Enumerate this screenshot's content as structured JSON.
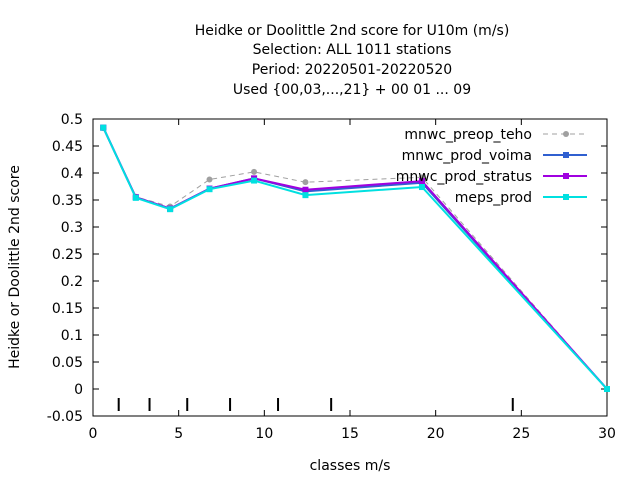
{
  "chart_data": {
    "type": "line",
    "title_lines": [
      "Heidke or Doolittle 2nd score  for U10m (m/s)",
      "Selection: ALL    1011 stations",
      "Period: 20220501-20220520",
      "Used {00,03,...,21} + 00 01 ... 09"
    ],
    "xlabel": "classes m/s",
    "ylabel": "Heidke or Doolittle 2nd score",
    "xlim": [
      0,
      30
    ],
    "ylim": [
      -0.05,
      0.5
    ],
    "x_ticks": [
      0,
      5,
      10,
      15,
      20,
      25,
      30
    ],
    "x_tick_labels": [
      "0",
      "5",
      "10",
      "15",
      "20",
      "25",
      "30"
    ],
    "y_ticks": [
      -0.05,
      0,
      0.05,
      0.1,
      0.15,
      0.2,
      0.25,
      0.3,
      0.35,
      0.4,
      0.45,
      0.5
    ],
    "y_tick_labels": [
      "-0.05",
      "0",
      "0.05",
      "0.1",
      "0.15",
      "0.2",
      "0.25",
      "0.3",
      "0.35",
      "0.4",
      "0.45",
      "0.5"
    ],
    "class_boundaries": [
      1.5,
      3.3,
      5.5,
      8,
      10.8,
      13.9,
      24.5
    ],
    "legend_position": "top-right",
    "grid": false,
    "series": [
      {
        "name": "mnwc_preop_teho",
        "color": "#a0a0a0",
        "dashed": true,
        "marker": "circle",
        "x": [
          0.6,
          2.5,
          4.5,
          6.8,
          9.4,
          12.4,
          19.2,
          30
        ],
        "y": [
          0.483,
          0.356,
          0.338,
          0.388,
          0.402,
          0.383,
          0.392,
          0.0
        ]
      },
      {
        "name": "mnwc_prod_voima",
        "color": "#3060d0",
        "dashed": false,
        "marker": "square",
        "x": [
          0.6,
          2.5,
          4.5,
          6.8,
          9.4,
          12.4,
          19.2,
          30
        ],
        "y": [
          0.484,
          0.355,
          0.334,
          0.371,
          0.39,
          0.366,
          0.382,
          0.0
        ]
      },
      {
        "name": "mnwc_prod_stratus",
        "color": "#a000e0",
        "dashed": false,
        "marker": "square",
        "x": [
          0.6,
          2.5,
          4.5,
          6.8,
          9.4,
          12.4,
          19.2,
          30
        ],
        "y": [
          0.484,
          0.355,
          0.334,
          0.371,
          0.39,
          0.369,
          0.385,
          0.0
        ]
      },
      {
        "name": "meps_prod",
        "color": "#00e0e0",
        "dashed": false,
        "marker": "square",
        "x": [
          0.6,
          2.5,
          4.5,
          6.8,
          9.4,
          12.4,
          19.2,
          30
        ],
        "y": [
          0.484,
          0.354,
          0.333,
          0.37,
          0.386,
          0.359,
          0.374,
          0.0
        ]
      }
    ]
  }
}
